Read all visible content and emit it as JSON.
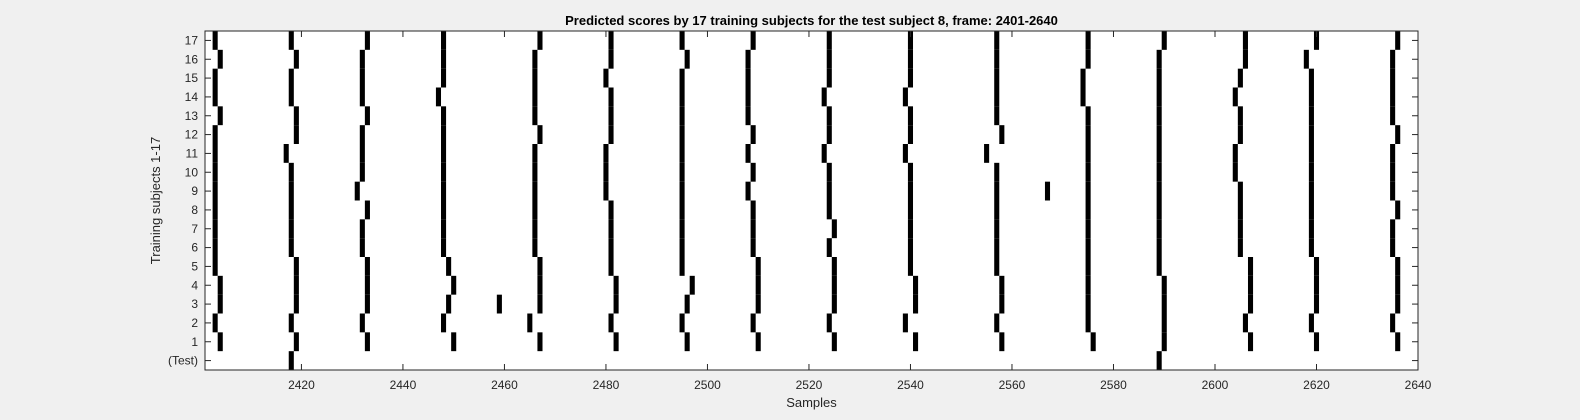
{
  "chart_data": {
    "type": "raster",
    "title": "Predicted scores by 17 training subjects for the test subject 8, frame: 2401-2640",
    "xlabel": "Samples",
    "ylabel": "Training subjects 1-17",
    "xlim": [
      2401,
      2640
    ],
    "xticks": [
      2420,
      2440,
      2460,
      2480,
      2500,
      2520,
      2540,
      2560,
      2580,
      2600,
      2620,
      2640
    ],
    "ylim": [
      -0.5,
      17.5
    ],
    "rows": [
      {
        "label": "(Test)",
        "index": 0,
        "events": [
          2418,
          2589
        ]
      },
      {
        "label": "1",
        "index": 1,
        "events": [
          2404,
          2419,
          2433,
          2450,
          2467,
          2482,
          2496,
          2510,
          2525,
          2541,
          2558,
          2576,
          2590,
          2607,
          2620,
          2636
        ]
      },
      {
        "label": "2",
        "index": 2,
        "events": [
          2403,
          2418,
          2432,
          2448,
          2465,
          2481,
          2495,
          2509,
          2524,
          2539,
          2557,
          2575,
          2590,
          2606,
          2619,
          2635
        ]
      },
      {
        "label": "3",
        "index": 3,
        "events": [
          2404,
          2419,
          2433,
          2449,
          2459,
          2467,
          2482,
          2496,
          2510,
          2525,
          2541,
          2558,
          2575,
          2590,
          2607,
          2620,
          2636
        ]
      },
      {
        "label": "4",
        "index": 4,
        "events": [
          2404,
          2419,
          2433,
          2450,
          2467,
          2482,
          2497,
          2510,
          2525,
          2541,
          2558,
          2575,
          2590,
          2607,
          2620,
          2636
        ]
      },
      {
        "label": "5",
        "index": 5,
        "events": [
          2403,
          2419,
          2433,
          2449,
          2467,
          2481,
          2495,
          2510,
          2525,
          2540,
          2557,
          2575,
          2589,
          2607,
          2620,
          2636
        ]
      },
      {
        "label": "6",
        "index": 6,
        "events": [
          2403,
          2418,
          2432,
          2448,
          2466,
          2481,
          2495,
          2509,
          2524,
          2540,
          2557,
          2575,
          2589,
          2605,
          2619,
          2635
        ]
      },
      {
        "label": "7",
        "index": 7,
        "events": [
          2403,
          2418,
          2432,
          2448,
          2466,
          2481,
          2495,
          2509,
          2525,
          2540,
          2557,
          2575,
          2589,
          2605,
          2619,
          2635
        ]
      },
      {
        "label": "8",
        "index": 8,
        "events": [
          2403,
          2418,
          2433,
          2448,
          2466,
          2481,
          2495,
          2509,
          2524,
          2540,
          2557,
          2575,
          2589,
          2605,
          2619,
          2636
        ]
      },
      {
        "label": "9",
        "index": 9,
        "events": [
          2403,
          2418,
          2431,
          2448,
          2466,
          2480,
          2495,
          2508,
          2524,
          2540,
          2557,
          2567,
          2575,
          2589,
          2605,
          2619,
          2635
        ]
      },
      {
        "label": "10",
        "index": 10,
        "events": [
          2403,
          2418,
          2432,
          2448,
          2466,
          2480,
          2495,
          2509,
          2524,
          2540,
          2557,
          2575,
          2589,
          2604,
          2619,
          2635
        ]
      },
      {
        "label": "11",
        "index": 11,
        "events": [
          2403,
          2417,
          2432,
          2448,
          2466,
          2480,
          2495,
          2508,
          2523,
          2539,
          2555,
          2575,
          2589,
          2604,
          2619,
          2635
        ]
      },
      {
        "label": "12",
        "index": 12,
        "events": [
          2403,
          2419,
          2432,
          2448,
          2467,
          2481,
          2495,
          2509,
          2524,
          2540,
          2558,
          2575,
          2589,
          2605,
          2619,
          2636
        ]
      },
      {
        "label": "13",
        "index": 13,
        "events": [
          2404,
          2419,
          2433,
          2448,
          2466,
          2481,
          2495,
          2508,
          2524,
          2540,
          2557,
          2575,
          2589,
          2605,
          2619,
          2635
        ]
      },
      {
        "label": "14",
        "index": 14,
        "events": [
          2403,
          2418,
          2432,
          2447,
          2466,
          2481,
          2495,
          2508,
          2523,
          2539,
          2557,
          2574,
          2589,
          2604,
          2619,
          2635
        ]
      },
      {
        "label": "15",
        "index": 15,
        "events": [
          2403,
          2418,
          2432,
          2448,
          2466,
          2480,
          2495,
          2508,
          2524,
          2540,
          2557,
          2574,
          2589,
          2605,
          2619,
          2635
        ]
      },
      {
        "label": "16",
        "index": 16,
        "events": [
          2404,
          2419,
          2432,
          2448,
          2466,
          2481,
          2496,
          2508,
          2524,
          2540,
          2557,
          2575,
          2589,
          2606,
          2618,
          2635
        ]
      },
      {
        "label": "17",
        "index": 17,
        "events": [
          2403,
          2418,
          2433,
          2448,
          2467,
          2481,
          2495,
          2509,
          2524,
          2540,
          2557,
          2575,
          2590,
          2606,
          2620,
          2636
        ]
      }
    ],
    "colors": {
      "background": "#f0f0f0",
      "axes_bg": "#ffffff",
      "mark": "#000000",
      "text": "#262626"
    }
  }
}
